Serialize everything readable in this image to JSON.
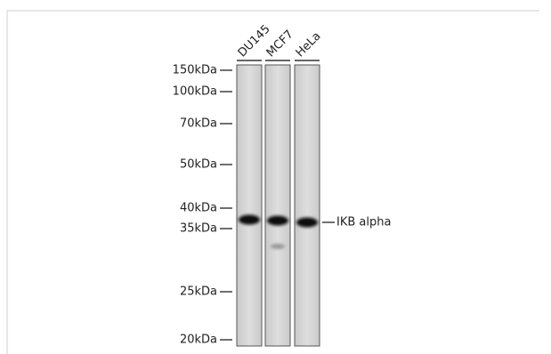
{
  "lanes": [
    "DU145",
    "MCF7",
    "HeLa"
  ],
  "markers": [
    "150kDa",
    "100kDa",
    "70kDa",
    "50kDa",
    "40kDa",
    "35kDa",
    "25kDa",
    "20kDa"
  ],
  "band_label": "IKB alpha"
}
